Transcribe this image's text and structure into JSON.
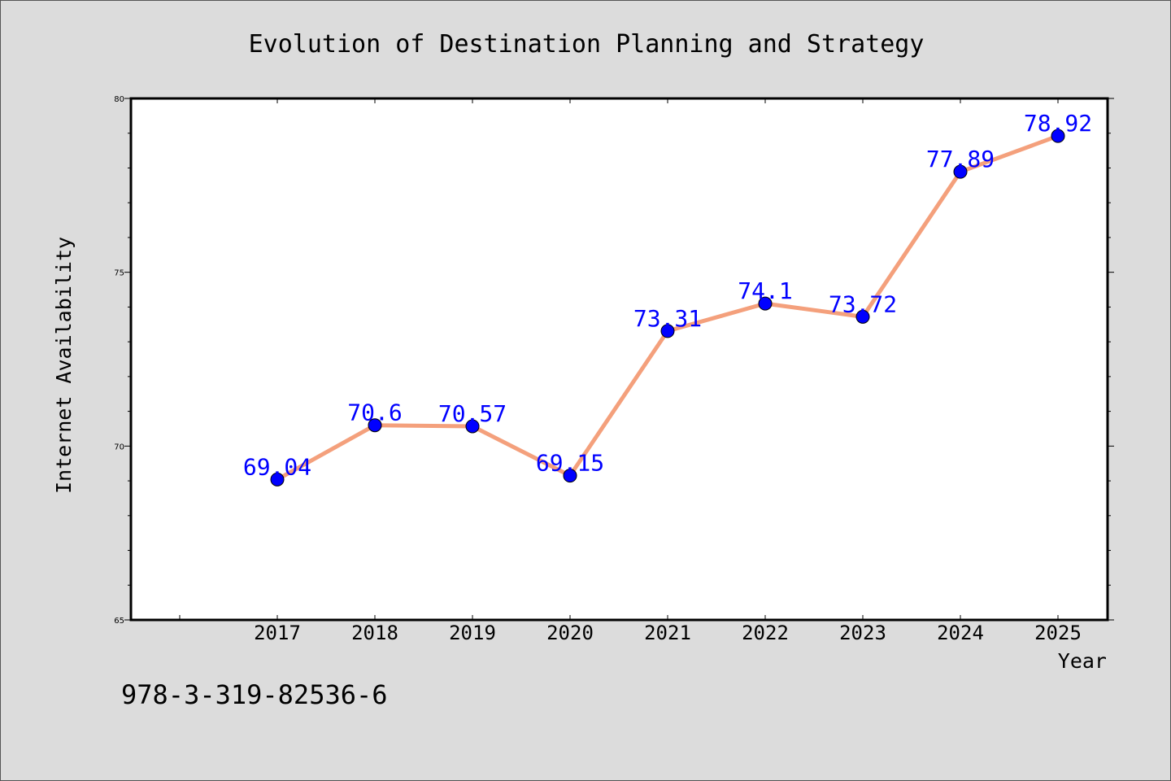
{
  "chart_data": {
    "type": "line",
    "title": "Evolution of Destination Planning and Strategy",
    "xlabel": "Year",
    "ylabel": "Internet Availability",
    "categories": [
      "2017",
      "2018",
      "2019",
      "2020",
      "2021",
      "2022",
      "2023",
      "2024",
      "2025"
    ],
    "series": [
      {
        "values": [
          69.04,
          70.6,
          70.57,
          69.15,
          73.31,
          74.1,
          73.72,
          77.89,
          78.92
        ]
      }
    ],
    "data_labels": [
      "69.04",
      "70.6",
      "70.57",
      "69.15",
      "73.31",
      "74.1",
      "73.72",
      "77.89",
      "78.92"
    ],
    "ylim": [
      65,
      80
    ],
    "y_ticks": [
      "65",
      "70",
      "75",
      "80"
    ],
    "grid": false,
    "line_color": "#f4a07c",
    "marker_color": "#0000ff",
    "label_color": "#0000ff",
    "plot_background": "#ffffff",
    "figure_background": "#dcdcdc"
  },
  "footer": {
    "code": "978-3-319-82536-6"
  }
}
